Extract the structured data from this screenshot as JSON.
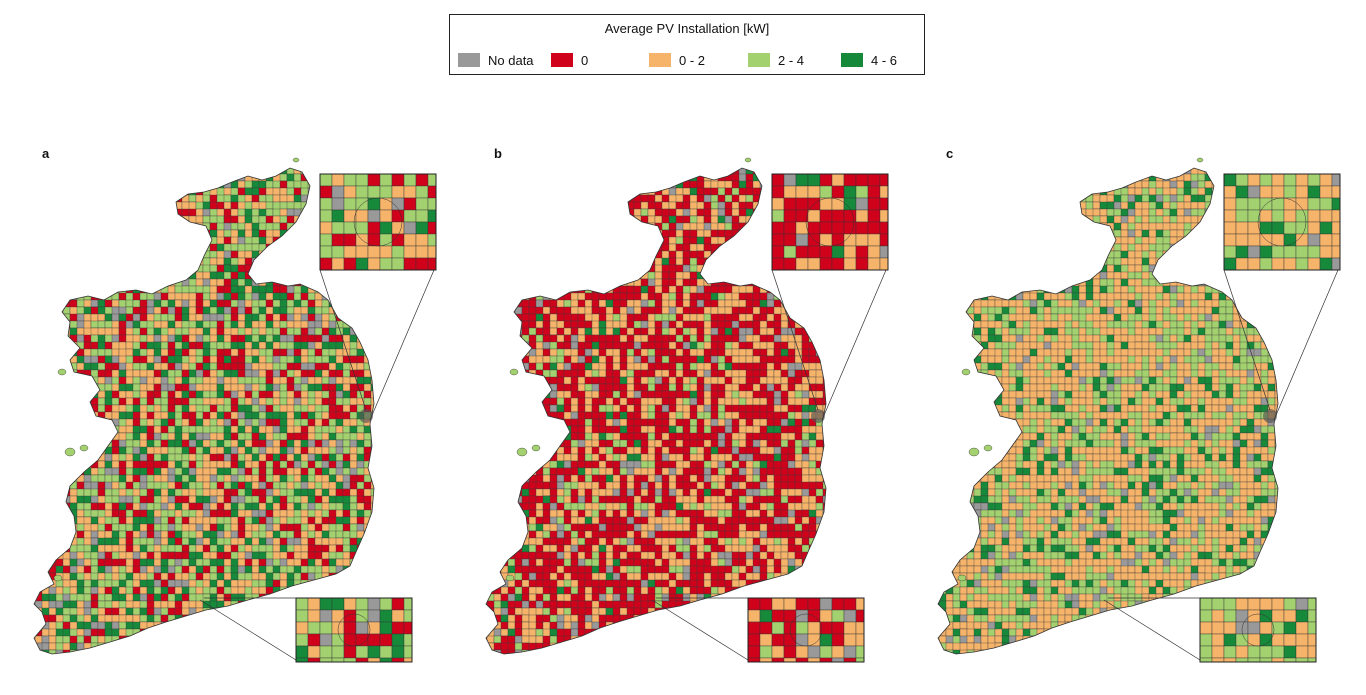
{
  "legend": {
    "title": "Average PV Installation [kW]",
    "items": [
      {
        "label": "No data",
        "color": "#999999"
      },
      {
        "label": "0",
        "color": "#d0021b"
      },
      {
        "label": "0 - 2",
        "color": "#f6b36a"
      },
      {
        "label": "2 - 4",
        "color": "#a3d16f"
      },
      {
        "label": "4 - 6",
        "color": "#168a3a"
      }
    ]
  },
  "panels": [
    {
      "label": "a",
      "weights": [
        0.09,
        0.2,
        0.26,
        0.28,
        0.17
      ]
    },
    {
      "label": "b",
      "weights": [
        0.07,
        0.5,
        0.3,
        0.09,
        0.04
      ]
    },
    {
      "label": "c",
      "weights": [
        0.06,
        0.0,
        0.5,
        0.3,
        0.14
      ]
    }
  ]
}
